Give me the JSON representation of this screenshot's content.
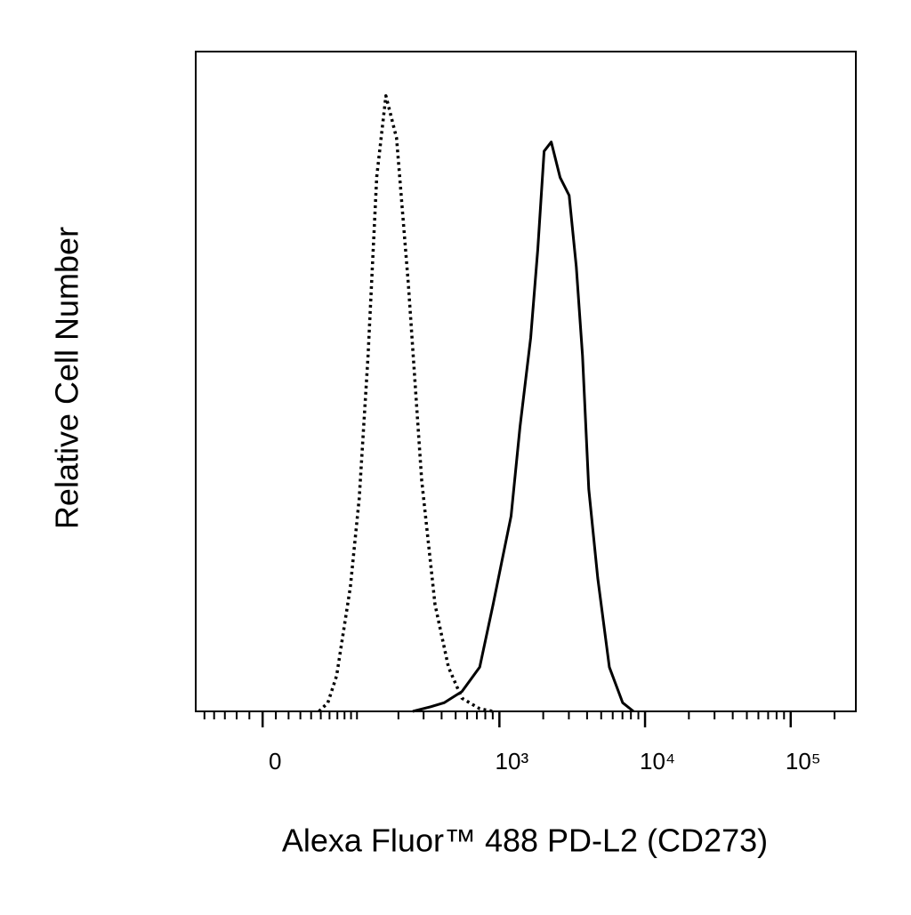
{
  "chart_data": {
    "type": "line",
    "xlabel": "Alexa Fluor™ 488 PD-L2 (CD273)",
    "ylabel": "Relative Cell Number",
    "xscale": "logicle",
    "xlim": [
      -60,
      280000
    ],
    "xticks": [
      0,
      {
        "value": 1000,
        "label": "10³"
      },
      {
        "value": 10000,
        "label": "10⁴"
      },
      {
        "value": 100000,
        "label": "10⁵"
      }
    ],
    "xminorticks": [
      -50,
      -40,
      -30,
      -20,
      -10,
      10,
      20,
      30,
      40,
      50,
      60,
      70,
      80,
      90,
      100,
      200,
      300,
      400,
      500,
      600,
      700,
      800,
      900,
      2000,
      3000,
      4000,
      5000,
      6000,
      7000,
      8000,
      9000,
      20000,
      30000,
      40000,
      50000,
      60000,
      70000,
      80000,
      90000,
      200000
    ],
    "ylim": [
      0,
      100
    ],
    "series": [
      {
        "color": "#000000",
        "dash": "dotted",
        "x": [
          48,
          58,
          69,
          89,
          104,
          121,
          140,
          163,
          194,
          235,
          291,
          360,
          446,
          552,
          732,
          905
        ],
        "values": [
          0,
          1.3,
          5.4,
          18.9,
          32.3,
          53.9,
          81,
          93.3,
          86.9,
          64.7,
          35,
          16.2,
          6.7,
          2.0,
          0.4,
          0
        ]
      },
      {
        "color": "#000000",
        "dash": "solid",
        "x": [
          252,
          336,
          416,
          552,
          732,
          905,
          1043,
          1203,
          1385,
          1640,
          1836,
          2028,
          2270,
          2613,
          3013,
          3373,
          3722,
          4108,
          4735,
          5690,
          7025,
          8330
        ],
        "values": [
          0,
          0.7,
          1.3,
          3.0,
          6.7,
          16.2,
          22.9,
          29.6,
          43.1,
          56.6,
          70.1,
          84.9,
          86.3,
          80.9,
          78.2,
          67.4,
          53.9,
          33.7,
          20.2,
          6.7,
          1.3,
          0
        ]
      }
    ]
  }
}
